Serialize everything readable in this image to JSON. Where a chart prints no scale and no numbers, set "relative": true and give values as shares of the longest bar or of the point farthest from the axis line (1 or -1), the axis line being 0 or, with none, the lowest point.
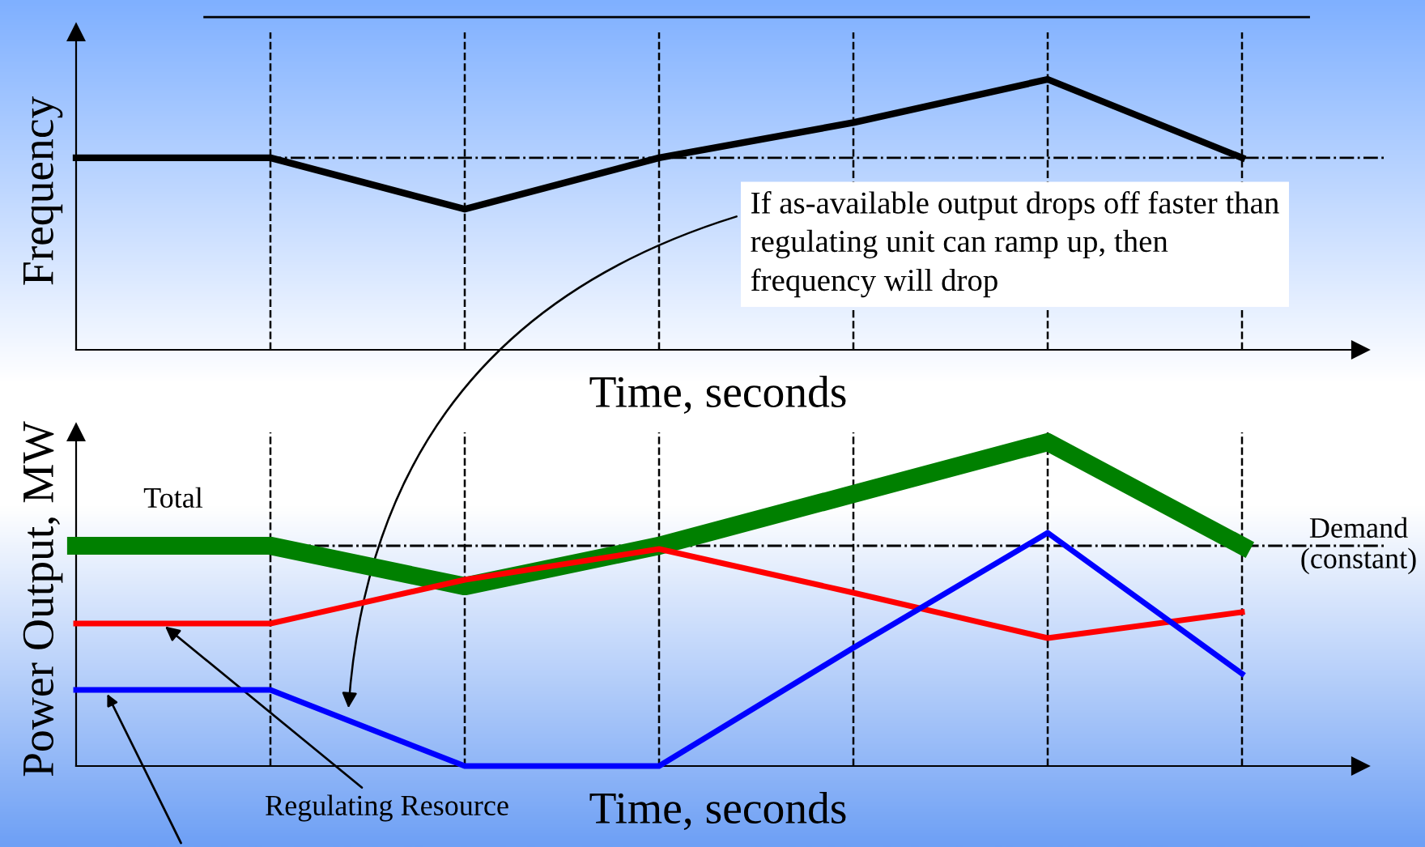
{
  "chart_data": [
    {
      "type": "line",
      "relative": true,
      "ylabel": "Frequency",
      "xlabel": "Time, seconds",
      "categories": [
        null,
        null,
        null,
        null,
        null,
        null,
        null
      ],
      "grid": "x",
      "legend": false,
      "series": [
        {
          "color": "#000000",
          "values": [
            0.71,
            0.71,
            0.52,
            0.71,
            0.84,
            1,
            0.71
          ]
        }
      ],
      "ref_lines": [
        {
          "axis": "y",
          "value": 0.71,
          "line_style": "dashdot",
          "color": "#000000"
        },
        {
          "axis": "y",
          "value": 1.23,
          "line_style": "solid",
          "color": "#000000"
        }
      ],
      "annotations": [
        "If as-available output drops off faster than\nregulating unit can ramp up, then\nfrequency will drop"
      ]
    },
    {
      "type": "line",
      "relative": true,
      "ylabel": "Power Output, MW",
      "xlabel": "Time, seconds",
      "categories": [
        null,
        null,
        null,
        null,
        null,
        null,
        null
      ],
      "grid": "x",
      "legend": false,
      "series": [
        {
          "name": "Total",
          "color": "#008000",
          "values": [
            0.68,
            0.68,
            0.555,
            0.68,
            0.84,
            1,
            0.68
          ]
        },
        {
          "name": "Regulating Resource",
          "color": "#ff0000",
          "values": [
            0.44,
            0.44,
            0.575,
            0.67,
            0.535,
            0.395,
            0.475
          ]
        },
        {
          "color": "#0000ff",
          "values": [
            0.235,
            0.235,
            0,
            0,
            0.365,
            0.72,
            0.285
          ]
        }
      ],
      "ref_lines": [
        {
          "axis": "y",
          "value": 0.68,
          "label": "Demand\n(constant)",
          "line_style": "dashdot",
          "color": "#000000"
        }
      ]
    }
  ]
}
